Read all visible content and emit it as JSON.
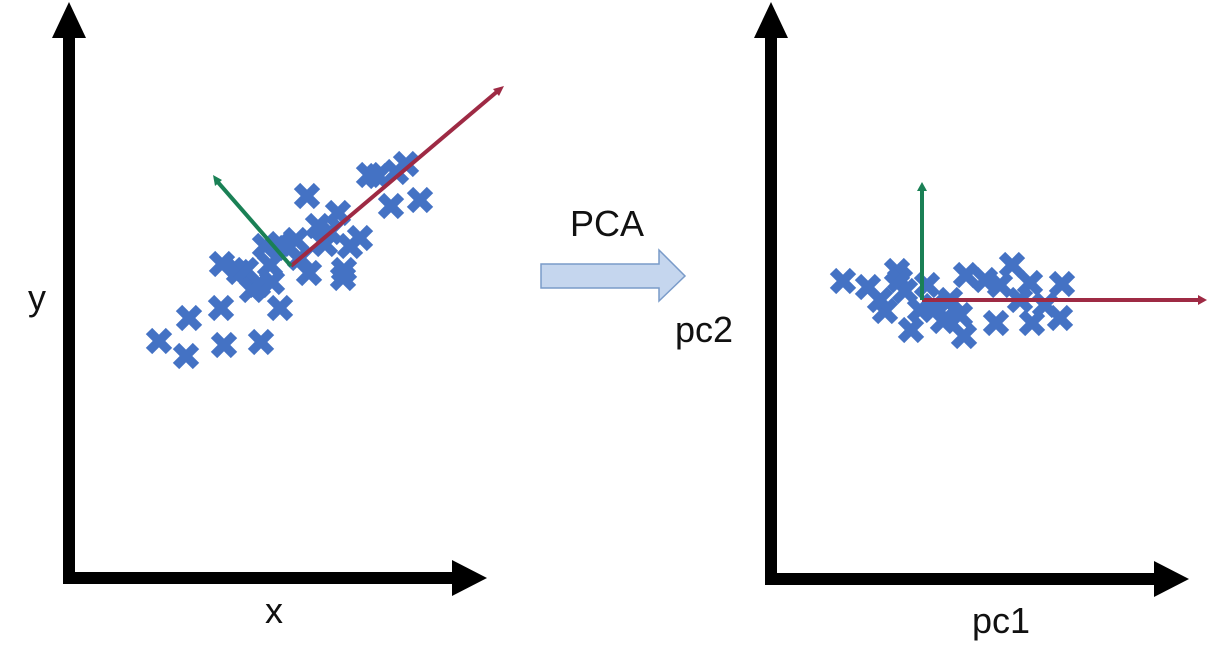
{
  "left_plot": {
    "x_label": "x",
    "y_label": "y"
  },
  "transform": {
    "label": "PCA"
  },
  "right_plot": {
    "x_label": "pc1",
    "y_label": "pc2"
  },
  "colors": {
    "axes": "#000000",
    "markers": "#4472C4",
    "pc1_vector": "#9E2A44",
    "pc2_vector": "#1A8055",
    "arrow_fill": "#C5D6EE",
    "arrow_stroke": "#7A9BC9",
    "text": "#111111"
  },
  "markers": {
    "shape": "x-cross",
    "left_count": 35,
    "right_count": 26
  }
}
